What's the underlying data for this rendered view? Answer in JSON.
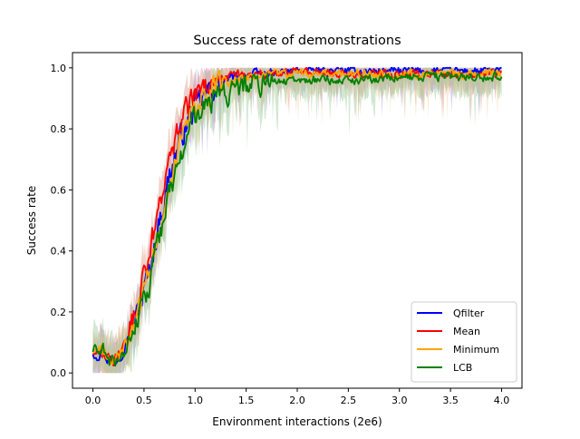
{
  "chart_data": {
    "type": "line",
    "title": "Success rate of demonstrations",
    "xlabel": "Environment interactions (2e6)",
    "ylabel": "Success rate",
    "xlim": [
      -0.2,
      4.2
    ],
    "ylim": [
      -0.05,
      1.05
    ],
    "xticks": [
      0.0,
      0.5,
      1.0,
      1.5,
      2.0,
      2.5,
      3.0,
      3.5,
      4.0
    ],
    "xtick_labels": [
      "0.0",
      "0.5",
      "1.0",
      "1.5",
      "2.0",
      "2.5",
      "3.0",
      "3.5",
      "4.0"
    ],
    "yticks": [
      0.0,
      0.2,
      0.4,
      0.6,
      0.8,
      1.0
    ],
    "ytick_labels": [
      "0.0",
      "0.2",
      "0.4",
      "0.6",
      "0.8",
      "1.0"
    ],
    "grid": false,
    "legend_position": "lower-right",
    "series": [
      {
        "name": "Qfilter",
        "color": "#0000ff",
        "shade_color": "#9f8bd8",
        "x": [
          0.0,
          0.1,
          0.15,
          0.2,
          0.25,
          0.3,
          0.35,
          0.4,
          0.45,
          0.5,
          0.55,
          0.6,
          0.65,
          0.7,
          0.75,
          0.8,
          0.85,
          0.9,
          0.95,
          1.0,
          1.1,
          1.2,
          1.3,
          1.4,
          1.5,
          1.75,
          2.0,
          2.5,
          3.0,
          3.5,
          4.0
        ],
        "y": [
          0.07,
          0.07,
          0.05,
          0.03,
          0.06,
          0.09,
          0.13,
          0.16,
          0.21,
          0.27,
          0.34,
          0.41,
          0.5,
          0.57,
          0.65,
          0.71,
          0.76,
          0.8,
          0.84,
          0.87,
          0.91,
          0.94,
          0.96,
          0.97,
          0.98,
          0.98,
          0.99,
          0.99,
          0.99,
          0.99,
          0.99
        ]
      },
      {
        "name": "Mean",
        "color": "#ff0000",
        "shade_color": "#e09a88",
        "x": [
          0.0,
          0.1,
          0.15,
          0.2,
          0.25,
          0.3,
          0.35,
          0.4,
          0.45,
          0.5,
          0.55,
          0.6,
          0.65,
          0.7,
          0.75,
          0.8,
          0.85,
          0.9,
          0.95,
          1.0,
          1.1,
          1.2,
          1.3,
          1.4,
          1.5,
          1.75,
          2.0,
          2.5,
          3.0,
          3.5,
          4.0
        ],
        "y": [
          0.07,
          0.07,
          0.06,
          0.04,
          0.07,
          0.1,
          0.14,
          0.18,
          0.24,
          0.31,
          0.39,
          0.47,
          0.55,
          0.63,
          0.7,
          0.76,
          0.81,
          0.85,
          0.88,
          0.91,
          0.94,
          0.96,
          0.97,
          0.98,
          0.98,
          0.98,
          0.99,
          0.98,
          0.98,
          0.98,
          0.98
        ]
      },
      {
        "name": "Minimum",
        "color": "#ffa500",
        "shade_color": "#f2cf98",
        "x": [
          0.0,
          0.1,
          0.15,
          0.2,
          0.25,
          0.3,
          0.35,
          0.4,
          0.45,
          0.5,
          0.55,
          0.6,
          0.65,
          0.7,
          0.75,
          0.8,
          0.85,
          0.9,
          0.95,
          1.0,
          1.1,
          1.2,
          1.3,
          1.4,
          1.5,
          1.75,
          2.0,
          2.5,
          3.0,
          3.5,
          4.0
        ],
        "y": [
          0.07,
          0.07,
          0.05,
          0.03,
          0.05,
          0.08,
          0.11,
          0.15,
          0.2,
          0.26,
          0.33,
          0.4,
          0.48,
          0.55,
          0.62,
          0.68,
          0.74,
          0.79,
          0.83,
          0.86,
          0.9,
          0.93,
          0.95,
          0.96,
          0.97,
          0.98,
          0.98,
          0.98,
          0.98,
          0.98,
          0.98
        ]
      },
      {
        "name": "LCB",
        "color": "#008000",
        "shade_color": "#9cc99c",
        "x": [
          0.0,
          0.1,
          0.15,
          0.2,
          0.25,
          0.3,
          0.35,
          0.4,
          0.45,
          0.5,
          0.55,
          0.6,
          0.65,
          0.7,
          0.75,
          0.8,
          0.85,
          0.9,
          0.95,
          1.0,
          1.1,
          1.2,
          1.3,
          1.4,
          1.5,
          1.75,
          2.0,
          2.5,
          3.0,
          3.5,
          4.0
        ],
        "y": [
          0.07,
          0.07,
          0.04,
          0.03,
          0.05,
          0.07,
          0.1,
          0.14,
          0.18,
          0.23,
          0.29,
          0.36,
          0.44,
          0.51,
          0.58,
          0.64,
          0.7,
          0.75,
          0.79,
          0.83,
          0.87,
          0.9,
          0.92,
          0.93,
          0.94,
          0.95,
          0.96,
          0.96,
          0.97,
          0.97,
          0.97
        ]
      }
    ]
  }
}
